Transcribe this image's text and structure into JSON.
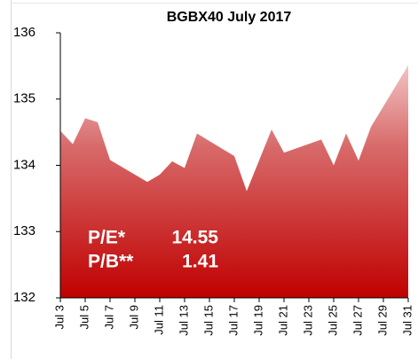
{
  "chart_data": {
    "type": "area",
    "title": "BGBX40 July 2017",
    "x": [
      3,
      4,
      5,
      6,
      7,
      10,
      11,
      12,
      13,
      14,
      17,
      18,
      20,
      21,
      24,
      25,
      26,
      27,
      28,
      31
    ],
    "values": [
      134.52,
      134.32,
      134.71,
      134.65,
      134.08,
      133.75,
      133.86,
      134.06,
      133.96,
      134.48,
      134.14,
      133.61,
      134.54,
      134.19,
      134.39,
      134.0,
      134.48,
      134.07,
      134.58,
      135.51
    ],
    "color": "#c00000",
    "xlim": [
      3,
      31
    ],
    "xticks": [
      {
        "value": 3,
        "label": "Jul 3"
      },
      {
        "value": 5,
        "label": "Jul 5"
      },
      {
        "value": 7,
        "label": "Jul 7"
      },
      {
        "value": 9,
        "label": "Jul 9"
      },
      {
        "value": 11,
        "label": "Jul 11"
      },
      {
        "value": 13,
        "label": "Jul 13"
      },
      {
        "value": 15,
        "label": "Jul 15"
      },
      {
        "value": 17,
        "label": "Jul 17"
      },
      {
        "value": 19,
        "label": "Jul 19"
      },
      {
        "value": 21,
        "label": "Jul 21"
      },
      {
        "value": 23,
        "label": "Jul 23"
      },
      {
        "value": 25,
        "label": "Jul 25"
      },
      {
        "value": 27,
        "label": "Jul 27"
      },
      {
        "value": 29,
        "label": "Jul 29"
      },
      {
        "value": 31,
        "label": "Jul 31"
      }
    ],
    "ylim": [
      132,
      136
    ],
    "yticks": [
      132,
      133,
      134,
      135,
      136
    ],
    "annotations": [
      {
        "label": "P/E*",
        "value": 14.55
      },
      {
        "label": "P/B**",
        "value": 1.41
      }
    ]
  }
}
